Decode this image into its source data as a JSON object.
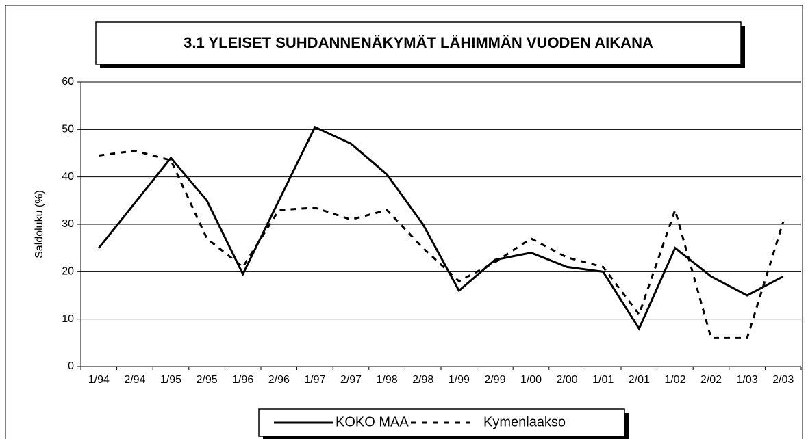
{
  "chart_data": {
    "type": "line",
    "title": "3.1 YLEISET SUHDANNENÄKYMÄT LÄHIMMÄN VUODEN AIKANA",
    "y_label": "Saldoluku (%)",
    "categories": [
      "1/94",
      "2/94",
      "1/95",
      "2/95",
      "1/96",
      "2/96",
      "1/97",
      "2/97",
      "1/98",
      "2/98",
      "1/99",
      "2/99",
      "1/00",
      "2/00",
      "1/01",
      "2/01",
      "1/02",
      "2/02",
      "1/03",
      "2/03"
    ],
    "series": [
      {
        "name": "KOKO MAA",
        "color": "#000000",
        "dash": "solid",
        "values": [
          25,
          34.5,
          44,
          35,
          19.5,
          35,
          50.5,
          47,
          40.5,
          30,
          16,
          22.5,
          24,
          21,
          20,
          8,
          25,
          19,
          15,
          19
        ]
      },
      {
        "name": "Kymenlaakso",
        "color": "#000000",
        "dash": "dashed",
        "values": [
          44.5,
          45.5,
          43.5,
          27,
          21,
          33,
          33.5,
          31,
          33,
          25,
          18,
          22,
          27,
          23,
          21,
          11,
          33,
          6,
          6,
          30.5
        ]
      }
    ],
    "ylim": [
      0,
      60
    ],
    "yticks": [
      0,
      10,
      20,
      30,
      40,
      50,
      60
    ],
    "grid": true,
    "legend": "bottom"
  }
}
